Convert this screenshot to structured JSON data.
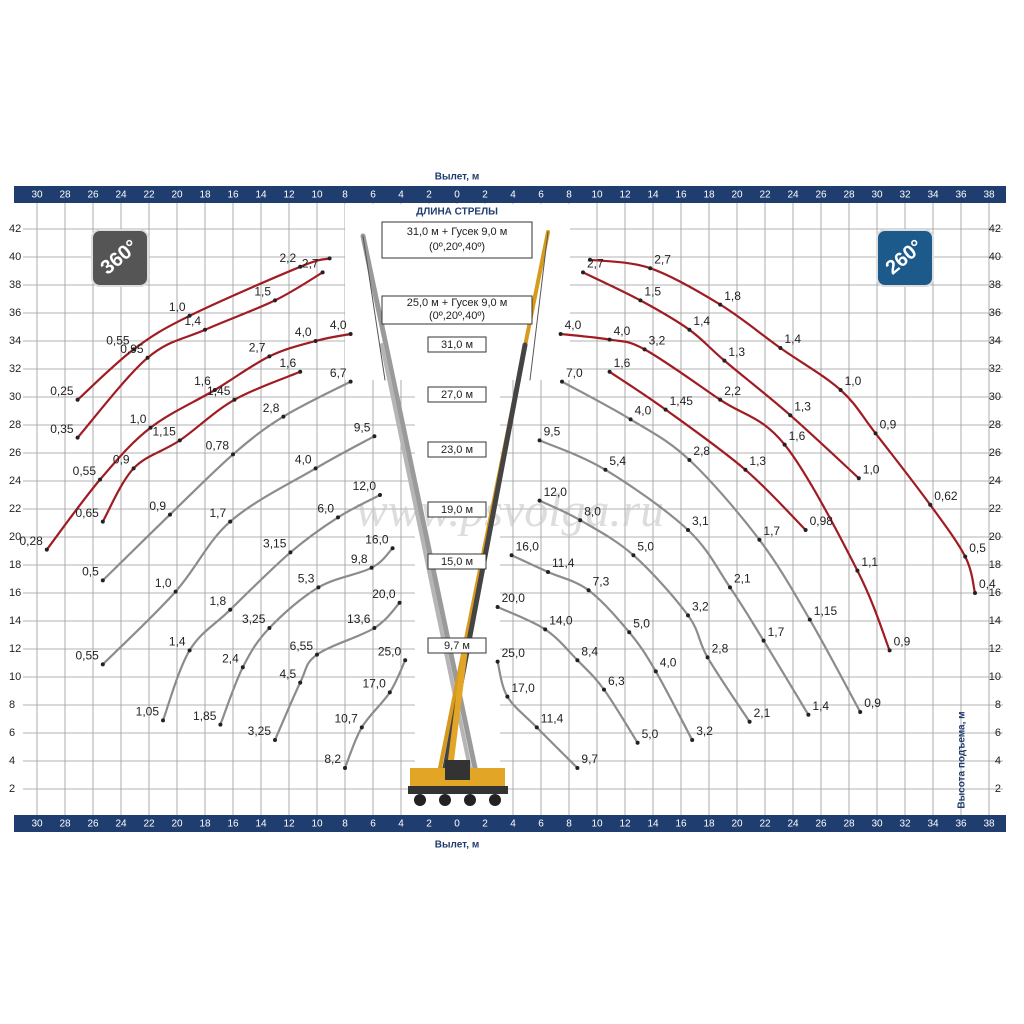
{
  "chart_data": {
    "type": "line",
    "x_label": "Вылет, м",
    "y_label": "Высота подъема, м",
    "boom_title": "ДЛИНА СТРЕЛЫ",
    "boom_labels": [
      "31,0 м + Гусек 9,0 м",
      "(0º,20º,40º)",
      "25,0 м + Гусек 9,0 м",
      "(0º,20º,40º)",
      "31,0 м",
      "27,0 м",
      "23,0 м",
      "19,0 м",
      "15,0 м",
      "9,7 м"
    ],
    "rotation_left": "360°",
    "rotation_right": "260°",
    "watermark": "www.psvolga.ru",
    "xlim": [
      -31,
      39
    ],
    "ylim": [
      0,
      43
    ],
    "grid": true,
    "xticks": [
      {
        "value": -30,
        "label": "30"
      },
      {
        "value": -28,
        "label": "28"
      },
      {
        "value": -26,
        "label": "26"
      },
      {
        "value": -24,
        "label": "24"
      },
      {
        "value": -22,
        "label": "22"
      },
      {
        "value": -20,
        "label": "20"
      },
      {
        "value": -18,
        "label": "18"
      },
      {
        "value": -16,
        "label": "16"
      },
      {
        "value": -14,
        "label": "14"
      },
      {
        "value": -12,
        "label": "12"
      },
      {
        "value": -10,
        "label": "10"
      },
      {
        "value": -8,
        "label": "8"
      },
      {
        "value": -6,
        "label": "6"
      },
      {
        "value": -4,
        "label": "4"
      },
      {
        "value": -2,
        "label": "2"
      },
      0,
      2,
      4,
      6,
      8,
      10,
      12,
      14,
      16,
      18,
      20,
      22,
      24,
      26,
      28,
      30,
      32,
      34,
      36,
      38
    ],
    "yticks": [
      2,
      4,
      6,
      8,
      10,
      12,
      14,
      16,
      18,
      20,
      22,
      24,
      26,
      28,
      30,
      32,
      34,
      36,
      38,
      40,
      42
    ],
    "series": [
      {
        "color": "#a01c22",
        "x": [
          -9.1,
          -11.2,
          -19.1,
          -23.1,
          -27.1
        ],
        "y": [
          39.9,
          39.3,
          35.8,
          33.4,
          29.8
        ],
        "loads": [
          null,
          "2,2",
          "1,0",
          "0,55",
          "0,25"
        ]
      },
      {
        "color": "#a01c22",
        "x": [
          -9.6,
          -13,
          -18,
          -22.1,
          -27.1
        ],
        "y": [
          38.9,
          36.9,
          34.8,
          32.8,
          27.1
        ],
        "loads": [
          "2,7",
          "1,5",
          "1,4",
          "0,95",
          "0,35"
        ]
      },
      {
        "color": "#a01c22",
        "x": [
          -7.6,
          -10.1,
          -13.4,
          -17.3,
          -21.9,
          -25.5,
          -29.3
        ],
        "y": [
          34.5,
          34,
          32.9,
          30.5,
          27.8,
          24.1,
          19.1
        ],
        "loads": [
          "4,0",
          "4,0",
          "2,7",
          "1,6",
          "1,0",
          "0,55",
          "0,28"
        ]
      },
      {
        "color": "#a01c22",
        "x": [
          -11.2,
          -15.9,
          -19.8,
          -23.1,
          -25.3
        ],
        "y": [
          31.8,
          29.8,
          26.9,
          24.9,
          21.1
        ],
        "loads": [
          "1,6",
          "1,45",
          "1,15",
          "0,9",
          "0,65"
        ]
      },
      {
        "color": "#8c8c8c",
        "x": [
          -7.6,
          -12.4,
          -16,
          -20.5,
          -25.3
        ],
        "y": [
          31.1,
          28.6,
          25.9,
          21.6,
          16.9
        ],
        "loads": [
          "6,7",
          "2,8",
          "0,78",
          "0,9",
          "0,5"
        ]
      },
      {
        "color": "#8c8c8c",
        "x": [
          -5.9,
          -10.1,
          -16.2,
          -20.1,
          -25.3
        ],
        "y": [
          27.2,
          24.9,
          21.1,
          16.1,
          10.9
        ],
        "loads": [
          "9,5",
          "4,0",
          "1,7",
          "1,0",
          "0,55"
        ]
      },
      {
        "color": "#8c8c8c",
        "x": [
          -5.5,
          -8.5,
          -11.9,
          -16.2,
          -19.1,
          -21
        ],
        "y": [
          23,
          21.4,
          18.9,
          14.8,
          11.9,
          6.9
        ],
        "loads": [
          "12,0",
          "6,0",
          "3,15",
          "1,8",
          "1,4",
          "1,05"
        ]
      },
      {
        "color": "#8c8c8c",
        "x": [
          -4.6,
          -6.1,
          -9.9,
          -13.4,
          -15.3,
          -16.9
        ],
        "y": [
          19.2,
          17.8,
          16.4,
          13.5,
          10.7,
          6.6
        ],
        "loads": [
          "16,0",
          "9,8",
          "5,3",
          "3,25",
          "2,4",
          "1,85"
        ]
      },
      {
        "color": "#8c8c8c",
        "x": [
          -4.1,
          -5.9,
          -10,
          -11.2,
          -13
        ],
        "y": [
          15.3,
          13.5,
          11.6,
          9.6,
          5.5
        ],
        "loads": [
          "20,0",
          "13,6",
          "6,55",
          "4,5",
          "3,25"
        ]
      },
      {
        "color": "#8c8c8c",
        "x": [
          -3.7,
          -4.8,
          -6.8,
          -8
        ],
        "y": [
          11.2,
          8.9,
          6.4,
          3.5
        ],
        "loads": [
          "25,0",
          "17,0",
          "10,7",
          "8,2"
        ]
      },
      {
        "color": "#a01c22",
        "x": [
          9.5,
          13.8,
          18.8,
          23.1,
          27.4,
          29.9,
          33.8,
          36.3,
          37
        ],
        "y": [
          39.8,
          39.2,
          36.6,
          33.5,
          30.5,
          27.4,
          22.3,
          18.6,
          16
        ],
        "loads": [
          null,
          "2,7",
          "1,8",
          "1,4",
          "1,0",
          "0,9",
          "0,62",
          "0,5",
          "0,4"
        ]
      },
      {
        "color": "#a01c22",
        "x": [
          9,
          13.1,
          16.6,
          19.1,
          23.8,
          28.7
        ],
        "y": [
          38.9,
          36.9,
          34.8,
          32.6,
          28.7,
          24.2
        ],
        "loads": [
          "2,7",
          "1,5",
          "1,4",
          "1,3",
          "1,3",
          "1,0"
        ]
      },
      {
        "color": "#a01c22",
        "x": [
          7.4,
          10.9,
          13.4,
          18.8,
          23.4,
          28.6,
          30.9
        ],
        "y": [
          34.5,
          34.1,
          33.4,
          29.8,
          26.6,
          17.6,
          11.9
        ],
        "loads": [
          "4,0",
          "4,0",
          "3,2",
          "2,2",
          "1,6",
          "1,1",
          "0,9"
        ]
      },
      {
        "color": "#a01c22",
        "x": [
          10.9,
          14.9,
          20.6,
          24.9
        ],
        "y": [
          31.8,
          29.1,
          24.8,
          20.5
        ],
        "loads": [
          "1,6",
          "1,45",
          "1,3",
          "0,98"
        ]
      },
      {
        "color": "#8c8c8c",
        "x": [
          7.5,
          12.4,
          16.6,
          21.6,
          25.2,
          28.8
        ],
        "y": [
          31.1,
          28.4,
          25.5,
          19.8,
          14.1,
          7.5
        ],
        "loads": [
          "7,0",
          "4,0",
          "2,8",
          "1,7",
          "1,15",
          "0,9"
        ]
      },
      {
        "color": "#8c8c8c",
        "x": [
          5.9,
          10.6,
          16.5,
          19.5,
          21.9,
          25.1
        ],
        "y": [
          26.9,
          24.8,
          20.5,
          16.4,
          12.6,
          7.3
        ],
        "loads": [
          "9,5",
          "5,4",
          "3,1",
          "2,1",
          "1,7",
          "1,4"
        ]
      },
      {
        "color": "#8c8c8c",
        "x": [
          5.9,
          8.8,
          12.6,
          16.5,
          17.9,
          20.9
        ],
        "y": [
          22.6,
          21.2,
          18.7,
          14.4,
          11.4,
          6.8
        ],
        "loads": [
          "12,0",
          "8,0",
          "5,0",
          "3,2",
          "2,8",
          "2,1"
        ]
      },
      {
        "color": "#8c8c8c",
        "x": [
          3.9,
          6.5,
          9.4,
          12.3,
          14.2,
          16.8
        ],
        "y": [
          18.7,
          17.5,
          16.2,
          13.2,
          10.4,
          5.5
        ],
        "loads": [
          "16,0",
          "11,4",
          "7,3",
          "5,0",
          "4,0",
          "3,2"
        ]
      },
      {
        "color": "#8c8c8c",
        "x": [
          2.9,
          6.3,
          8.6,
          10.5,
          12.9
        ],
        "y": [
          15,
          13.4,
          11.2,
          9.1,
          5.3
        ],
        "loads": [
          "20,0",
          "14,0",
          "8,4",
          "6,3",
          "5,0"
        ]
      },
      {
        "color": "#8c8c8c",
        "x": [
          2.9,
          3.6,
          5.7,
          8.6
        ],
        "y": [
          11.1,
          8.6,
          6.4,
          3.5
        ],
        "loads": [
          "25,0",
          "17,0",
          "11,4",
          "9,7"
        ]
      }
    ]
  }
}
